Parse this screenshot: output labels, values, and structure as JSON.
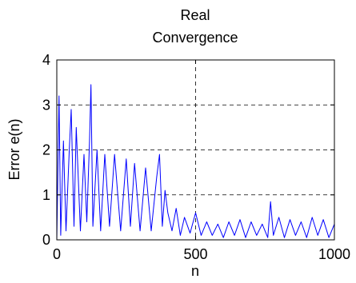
{
  "chart_data": {
    "type": "line",
    "title_line1": "Real",
    "title_line2": "Convergence",
    "xlabel": "n",
    "ylabel": "Error e(n)",
    "xlim": [
      0,
      1000
    ],
    "ylim": [
      0,
      4
    ],
    "xticks": [
      "0",
      "500",
      "1000"
    ],
    "yticks": [
      "0",
      "1",
      "2",
      "3",
      "4"
    ],
    "grid": "dashed",
    "series": [
      {
        "color": "#0000ff",
        "x": [
          0,
          8,
          14,
          24,
          33,
          45,
          52,
          62,
          70,
          85,
          98,
          108,
          118,
          123,
          130,
          145,
          158,
          173,
          190,
          208,
          230,
          250,
          265,
          280,
          300,
          320,
          340,
          360,
          370,
          380,
          390,
          400,
          415,
          430,
          445,
          460,
          480,
          500,
          520,
          540,
          560,
          580,
          600,
          620,
          640,
          660,
          680,
          700,
          720,
          740,
          760,
          770,
          780,
          800,
          820,
          840,
          860,
          880,
          900,
          920,
          940,
          960,
          980,
          1000
        ],
        "y": [
          0.0,
          3.2,
          0.1,
          2.2,
          0.2,
          2.0,
          2.9,
          0.3,
          2.5,
          0.2,
          1.9,
          0.4,
          2.2,
          3.45,
          0.3,
          2.0,
          0.2,
          1.9,
          0.3,
          1.9,
          0.2,
          1.8,
          0.3,
          1.7,
          0.2,
          1.6,
          0.2,
          1.4,
          1.9,
          0.3,
          1.1,
          0.6,
          0.2,
          0.7,
          0.1,
          0.5,
          0.15,
          0.6,
          0.1,
          0.4,
          0.1,
          0.35,
          0.05,
          0.4,
          0.1,
          0.45,
          0.05,
          0.4,
          0.1,
          0.35,
          0.05,
          0.85,
          0.1,
          0.5,
          0.05,
          0.45,
          0.1,
          0.4,
          0.05,
          0.5,
          0.1,
          0.45,
          0.05,
          0.35
        ]
      }
    ]
  }
}
